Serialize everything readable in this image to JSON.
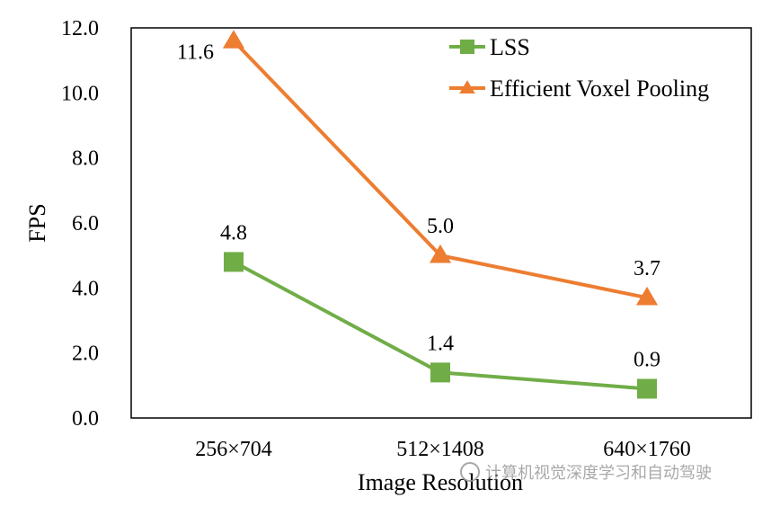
{
  "chart_data": {
    "type": "line",
    "categories": [
      "256×704",
      "512×1408",
      "640×1760"
    ],
    "series": [
      {
        "name": "LSS",
        "values": [
          4.8,
          1.4,
          0.9
        ],
        "labels": [
          "4.8",
          "1.4",
          "0.9"
        ],
        "color": "#70ad47",
        "marker": "square"
      },
      {
        "name": "Efficient Voxel Pooling",
        "values": [
          11.6,
          5.0,
          3.7
        ],
        "labels": [
          "11.6",
          "5.0",
          "3.7"
        ],
        "color": "#ed7d31",
        "marker": "triangle"
      }
    ],
    "xlabel": "Image Resolution",
    "ylabel": "FPS",
    "ylim": [
      0,
      12
    ],
    "yticks": [
      "0.0",
      "2.0",
      "4.0",
      "6.0",
      "8.0",
      "10.0",
      "12.0"
    ],
    "grid": false,
    "legend": "top-right"
  },
  "watermark": {
    "text": "计算机视觉深度学习和自动驾驶",
    "icon": "wechat-icon"
  }
}
